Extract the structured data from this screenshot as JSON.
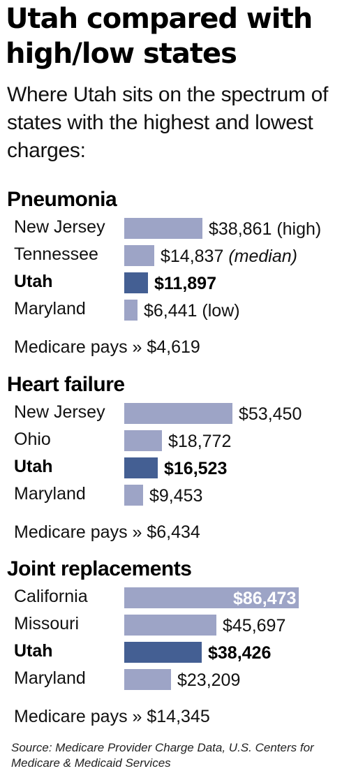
{
  "header": {
    "title": "Utah compared with high/low states",
    "subtitle": "Where Utah sits on the spectrum of states with the highest and lowest charges:"
  },
  "chart_data": [
    {
      "type": "bar",
      "title": "Pneumonia",
      "categories": [
        "New Jersey",
        "Tennessee",
        "Utah",
        "Maryland"
      ],
      "values": [
        38861,
        14837,
        11897,
        6441
      ],
      "value_labels": [
        "$38,861",
        "$14,837",
        "$11,897",
        "$6,441"
      ],
      "notes": [
        "(high)",
        "(median)",
        "",
        "(low)"
      ],
      "highlight": "Utah",
      "medicare_text": "Medicare pays » $4,619"
    },
    {
      "type": "bar",
      "title": "Heart failure",
      "categories": [
        "New Jersey",
        "Ohio",
        "Utah",
        "Maryland"
      ],
      "values": [
        53450,
        18772,
        16523,
        9453
      ],
      "value_labels": [
        "$53,450",
        "$18,772",
        "$16,523",
        "$9,453"
      ],
      "notes": [
        "",
        "",
        "",
        ""
      ],
      "highlight": "Utah",
      "medicare_text": "Medicare pays » $6,434"
    },
    {
      "type": "bar",
      "title": "Joint replacements",
      "categories": [
        "California",
        "Missouri",
        "Utah",
        "Maryland"
      ],
      "values": [
        86473,
        45697,
        38426,
        23209
      ],
      "value_labels": [
        "$86,473",
        "$45,697",
        "$38,426",
        "$23,209"
      ],
      "notes": [
        "",
        "",
        "",
        ""
      ],
      "highlight": "Utah",
      "medicare_text": "Medicare pays » $14,345"
    }
  ],
  "colors": {
    "bar": "#9da4c6",
    "highlight_bar": "#445f93"
  },
  "source": "Source: Medicare Provider Charge Data, U.S. Centers for Medicare & Medicaid Services"
}
